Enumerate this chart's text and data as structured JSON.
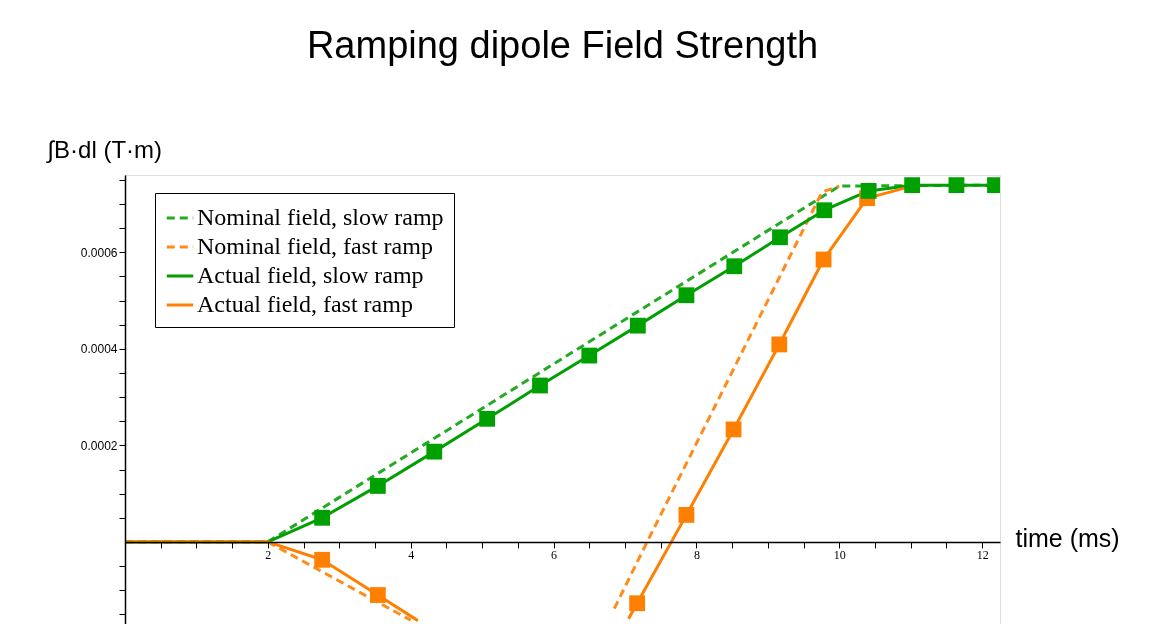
{
  "chart_data": {
    "type": "line",
    "title": "Ramping dipole Field Strength",
    "xlabel": "time (ms)",
    "ylabel": "∫B·dl (T·m)",
    "xlim": [
      0,
      12.25
    ],
    "ylim": [
      -0.00017,
      0.00076
    ],
    "xticks": [
      {
        "value": 0.5,
        "label": null
      },
      {
        "value": 1,
        "label": null
      },
      {
        "value": 1.5,
        "label": null
      },
      {
        "value": 2,
        "label": "2"
      },
      {
        "value": 2.5,
        "label": null
      },
      {
        "value": 3,
        "label": null
      },
      {
        "value": 3.5,
        "label": null
      },
      {
        "value": 4,
        "label": "4"
      },
      {
        "value": 4.5,
        "label": null
      },
      {
        "value": 5,
        "label": null
      },
      {
        "value": 5.5,
        "label": null
      },
      {
        "value": 6,
        "label": "6"
      },
      {
        "value": 6.5,
        "label": null
      },
      {
        "value": 7,
        "label": null
      },
      {
        "value": 7.5,
        "label": null
      },
      {
        "value": 8,
        "label": "8"
      },
      {
        "value": 8.5,
        "label": null
      },
      {
        "value": 9,
        "label": null
      },
      {
        "value": 9.5,
        "label": null
      },
      {
        "value": 10,
        "label": "10"
      },
      {
        "value": 10.5,
        "label": null
      },
      {
        "value": 11,
        "label": null
      },
      {
        "value": 11.5,
        "label": null
      },
      {
        "value": 12,
        "label": "12"
      }
    ],
    "yticks": [
      {
        "value": -0.00015,
        "label": null
      },
      {
        "value": -0.0001,
        "label": null
      },
      {
        "value": -5e-05,
        "label": null
      },
      {
        "value": 5e-05,
        "label": null
      },
      {
        "value": 0.0001,
        "label": null
      },
      {
        "value": 0.00015,
        "label": null
      },
      {
        "value": 0.0002,
        "label": "0.0002"
      },
      {
        "value": 0.00025,
        "label": null
      },
      {
        "value": 0.0003,
        "label": null
      },
      {
        "value": 0.00035,
        "label": null
      },
      {
        "value": 0.0004,
        "label": "0.0004"
      },
      {
        "value": 0.00045,
        "label": null
      },
      {
        "value": 0.0005,
        "label": null
      },
      {
        "value": 0.00055,
        "label": null
      },
      {
        "value": 0.0006,
        "label": "0.0006"
      },
      {
        "value": 0.00065,
        "label": null
      },
      {
        "value": 0.0007,
        "label": null
      },
      {
        "value": 0.00075,
        "label": null
      }
    ],
    "grid": false,
    "legend": "top left",
    "series": [
      {
        "name": "Nominal field, slow ramp",
        "color": "#22aa22",
        "line_style": "dashed",
        "marker": "none",
        "x": [
          0,
          2,
          10.0,
          12.18
        ],
        "values": [
          0,
          0,
          0.000737,
          0.000739
        ]
      },
      {
        "name": "Nominal field, fast ramp",
        "color": "#ff8c1a",
        "line_style": "dashed",
        "marker": "none",
        "x": [
          0,
          2,
          3.54,
          4.0,
          5.5,
          6.85,
          7.31,
          9.76,
          10.0
        ],
        "values": [
          0,
          0,
          -0.000125,
          -0.000162,
          null,
          -0.000138,
          0,
          0.000725,
          0.000737
        ]
      },
      {
        "name": "Actual field, slow ramp",
        "color": "#00a000",
        "line_style": "solid",
        "x": [
          0,
          2,
          2.76,
          3.54,
          4.33,
          5.07,
          5.81,
          6.5,
          7.18,
          7.86,
          8.53,
          9.17,
          9.79,
          10.41,
          11.02,
          11.64,
          12.18
        ],
        "values": [
          0,
          0,
          5e-05,
          0.000116,
          0.000187,
          0.000255,
          0.000324,
          0.000386,
          0.000448,
          0.000511,
          0.000571,
          0.000631,
          0.000687,
          0.000727,
          0.000739,
          0.000739,
          0.000739
        ]
      },
      {
        "name": "Actual field, fast ramp",
        "color": "#ff8000",
        "line_style": "solid",
        "x": [
          0,
          2,
          2.76,
          3.54,
          4.1,
          5.5,
          7.05,
          7.17,
          7.86,
          8.52,
          9.16,
          9.78,
          10.39,
          11.02
        ],
        "values": [
          0,
          0,
          -3.7e-05,
          -0.00011,
          -0.000163,
          null,
          -0.000159,
          -0.000127,
          5.6e-05,
          0.000233,
          0.000409,
          0.000585,
          0.000712,
          0.000737
        ]
      },
      {
        "type": "scatter",
        "marker": "square",
        "color": "#ff8000",
        "x": [
          2.76,
          3.54,
          7.17,
          7.86,
          8.52,
          9.16,
          9.78,
          10.39
        ],
        "values": [
          -3.7e-05,
          -0.00011,
          -0.000127,
          5.6e-05,
          0.000233,
          0.000409,
          0.000585,
          0.000712
        ]
      },
      {
        "type": "scatter",
        "marker": "square",
        "color": "#00a000",
        "x": [
          2.76,
          3.54,
          4.33,
          5.07,
          5.81,
          6.5,
          7.18,
          7.86,
          8.53,
          9.17,
          9.79,
          10.41,
          11.02,
          11.64,
          12.18
        ],
        "values": [
          5e-05,
          0.000116,
          0.000187,
          0.000255,
          0.000324,
          0.000386,
          0.000448,
          0.000511,
          0.000571,
          0.000631,
          0.000687,
          0.000727,
          0.000739,
          0.000739,
          0.000739
        ]
      }
    ]
  }
}
